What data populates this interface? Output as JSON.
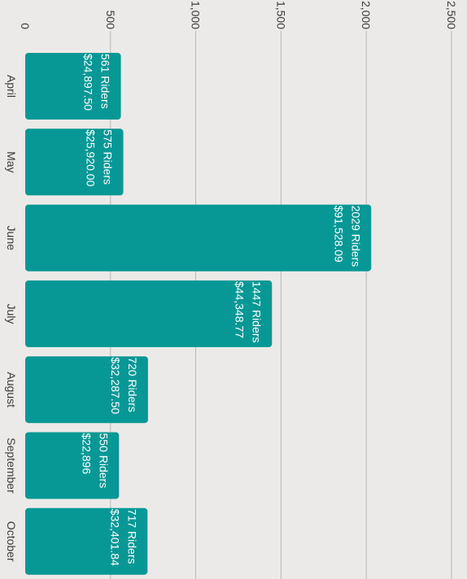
{
  "chart_data": {
    "type": "bar",
    "orientation": "horizontal",
    "categories": [
      "April",
      "May",
      "June",
      "July",
      "August",
      "September",
      "October"
    ],
    "riders": [
      561,
      575,
      2029,
      1447,
      720,
      550,
      717
    ],
    "labels_riders": [
      "561 Riders",
      "575 Riders",
      "2029 Riders",
      "1447 Riders",
      "720 Riders",
      "550 Riders",
      "717 Riders"
    ],
    "labels_revenue": [
      "$24,897.50",
      "$25,920.00",
      "$91,528.09",
      "$44,348.77",
      "$32,287.50",
      "$22,896",
      "$32,401.84"
    ],
    "ticks": [
      0,
      500,
      1000,
      1500,
      2000,
      2500
    ],
    "tick_labels": [
      "0",
      "500",
      "1,000",
      "1,500",
      "2,000",
      "2,500"
    ],
    "xlim": [
      0,
      2600
    ],
    "grid": true,
    "bar_color": "#079896",
    "grid_color": "#b9b7b5",
    "text_color": "#3a3a3a"
  }
}
